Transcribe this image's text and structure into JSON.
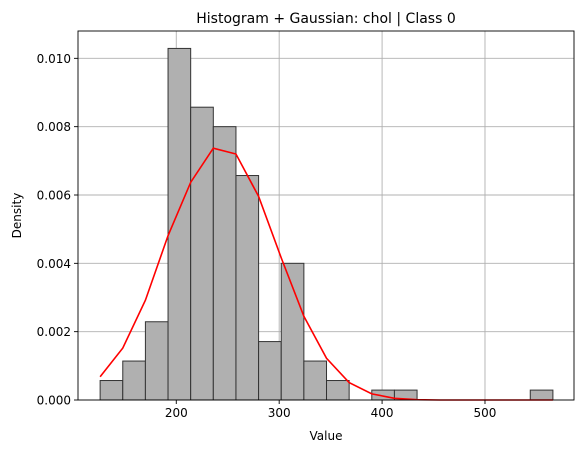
{
  "chart_data": {
    "type": "bar",
    "title": "Histogram + Gaussian: chol | Class 0",
    "xlabel": "Value",
    "ylabel": "Density",
    "xlim": [
      104.5,
      586.5
    ],
    "ylim": [
      0,
      0.0108
    ],
    "grid": true,
    "x_ticks": [
      {
        "value": 200,
        "label": "200"
      },
      {
        "value": 300,
        "label": "300"
      },
      {
        "value": 400,
        "label": "400"
      },
      {
        "value": 500,
        "label": "500"
      }
    ],
    "y_ticks": [
      {
        "value": 0.0,
        "label": "0.000"
      },
      {
        "value": 0.002,
        "label": "0.002"
      },
      {
        "value": 0.004,
        "label": "0.004"
      },
      {
        "value": 0.006,
        "label": "0.006"
      },
      {
        "value": 0.008,
        "label": "0.008"
      },
      {
        "value": 0.01,
        "label": "0.010"
      }
    ],
    "histogram": {
      "bin_edges": [
        126,
        148,
        170,
        192,
        214,
        236,
        258,
        280,
        302,
        324,
        346,
        368,
        390,
        412,
        434,
        456,
        478,
        500,
        522,
        544,
        566
      ],
      "densities": [
        0.00057,
        0.00114,
        0.00229,
        0.01029,
        0.00857,
        0.008,
        0.00657,
        0.00171,
        0.004,
        0.00114,
        0.00057,
        0.0,
        0.00029,
        0.00029,
        0.0,
        0.0,
        0.0,
        0.0,
        0.0,
        0.00029
      ],
      "fill_color": "#b0b0b0",
      "edge_color": "#333333"
    },
    "series": [
      {
        "type": "line",
        "color": "#ff0000",
        "x": [
          126,
          148,
          170,
          192,
          214,
          236,
          258,
          280,
          302,
          324,
          346,
          368,
          390,
          412,
          434,
          456,
          478,
          500,
          522,
          544,
          566
        ],
        "values": [
          0.00068,
          0.00152,
          0.00292,
          0.00481,
          0.00637,
          0.00737,
          0.0072,
          0.00596,
          0.00416,
          0.00245,
          0.00122,
          0.00051,
          0.00018,
          5e-05,
          1e-05,
          0.0,
          0.0,
          0.0,
          0.0,
          0.0,
          0.0
        ]
      }
    ]
  }
}
